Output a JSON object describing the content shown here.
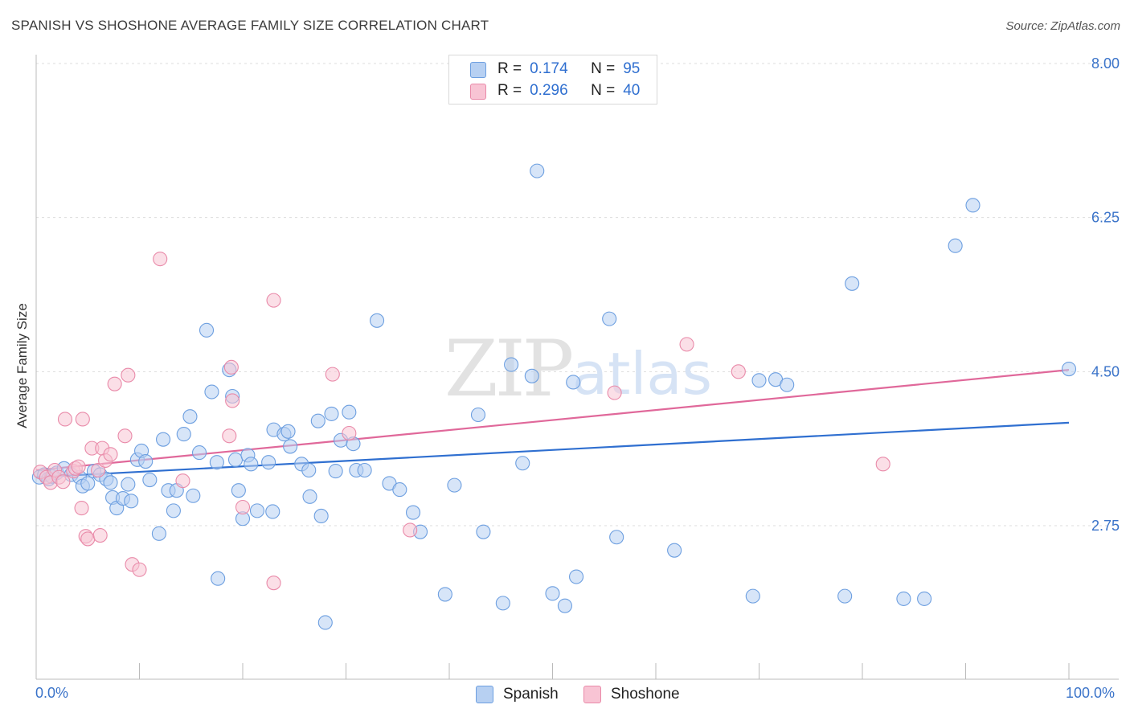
{
  "title": "SPANISH VS SHOSHONE AVERAGE FAMILY SIZE CORRELATION CHART",
  "source": "Source: ZipAtlas.com",
  "watermark": {
    "zip": "ZIP",
    "atlas": "atlas"
  },
  "legend": {
    "r_label": "R =",
    "n_label": "N =",
    "rows": [
      {
        "name": "Spanish",
        "r": "0.174",
        "n": "95"
      },
      {
        "name": "Shoshone",
        "r": "0.296",
        "n": "40"
      }
    ]
  },
  "colors": {
    "spanish_fill": "#b7d0f2",
    "spanish_stroke": "#6d9fe0",
    "spanish_line": "#2f6fd0",
    "shoshone_fill": "#f8c4d4",
    "shoshone_stroke": "#e98aa9",
    "shoshone_line": "#e0689a",
    "accent": "#3a73c9"
  },
  "chart_data": {
    "type": "scatter",
    "title": "SPANISH VS SHOSHONE AVERAGE FAMILY SIZE CORRELATION CHART",
    "xlabel": "",
    "ylabel": "Average Family Size",
    "xlim": [
      0,
      100
    ],
    "ylim": [
      1.3,
      8.3
    ],
    "x_tick_labels": [
      "0.0%",
      "100.0%"
    ],
    "y_ticks": [
      2.75,
      4.5,
      6.25,
      8.0
    ],
    "y_tick_labels": [
      "2.75",
      "4.50",
      "6.25",
      "8.00"
    ],
    "grid": true,
    "series": [
      {
        "name": "Spanish",
        "trend": {
          "x": [
            0,
            100
          ],
          "y": [
            3.3,
            3.92
          ]
        },
        "points": [
          [
            0.3,
            3.3
          ],
          [
            0.8,
            3.33
          ],
          [
            1.2,
            3.28
          ],
          [
            1.5,
            3.31
          ],
          [
            2.0,
            3.35
          ],
          [
            2.7,
            3.4
          ],
          [
            3.4,
            3.33
          ],
          [
            4.2,
            3.3
          ],
          [
            4.5,
            3.2
          ],
          [
            5.0,
            3.23
          ],
          [
            5.6,
            3.37
          ],
          [
            6.2,
            3.33
          ],
          [
            6.8,
            3.28
          ],
          [
            7.2,
            3.24
          ],
          [
            7.4,
            3.07
          ],
          [
            7.8,
            2.95
          ],
          [
            8.4,
            3.06
          ],
          [
            8.9,
            3.22
          ],
          [
            9.2,
            3.03
          ],
          [
            9.8,
            3.5
          ],
          [
            10.2,
            3.6
          ],
          [
            10.6,
            3.48
          ],
          [
            11.0,
            3.27
          ],
          [
            11.9,
            2.66
          ],
          [
            12.3,
            3.73
          ],
          [
            12.8,
            3.15
          ],
          [
            13.3,
            2.92
          ],
          [
            13.6,
            3.15
          ],
          [
            14.3,
            3.79
          ],
          [
            14.9,
            3.99
          ],
          [
            15.2,
            3.09
          ],
          [
            15.8,
            3.58
          ],
          [
            16.5,
            4.97
          ],
          [
            17.0,
            4.27
          ],
          [
            17.5,
            3.47
          ],
          [
            17.6,
            2.15
          ],
          [
            18.7,
            4.52
          ],
          [
            19.0,
            4.22
          ],
          [
            19.3,
            3.5
          ],
          [
            19.6,
            3.15
          ],
          [
            20.0,
            2.83
          ],
          [
            20.5,
            3.55
          ],
          [
            20.8,
            3.45
          ],
          [
            21.4,
            2.92
          ],
          [
            22.5,
            3.47
          ],
          [
            22.9,
            2.91
          ],
          [
            23.0,
            3.84
          ],
          [
            24.0,
            3.79
          ],
          [
            24.4,
            3.82
          ],
          [
            24.6,
            3.65
          ],
          [
            25.7,
            3.45
          ],
          [
            26.4,
            3.38
          ],
          [
            26.5,
            3.08
          ],
          [
            27.3,
            3.94
          ],
          [
            27.6,
            2.86
          ],
          [
            28.0,
            1.65
          ],
          [
            28.6,
            4.02
          ],
          [
            29.0,
            3.37
          ],
          [
            29.5,
            3.72
          ],
          [
            30.3,
            4.04
          ],
          [
            30.7,
            3.68
          ],
          [
            31.0,
            3.38
          ],
          [
            31.8,
            3.38
          ],
          [
            33.0,
            5.08
          ],
          [
            34.2,
            3.23
          ],
          [
            36.5,
            2.9
          ],
          [
            37.2,
            2.68
          ],
          [
            39.6,
            1.97
          ],
          [
            40.5,
            3.21
          ],
          [
            42.8,
            4.01
          ],
          [
            43.3,
            2.68
          ],
          [
            45.2,
            1.87
          ],
          [
            46.0,
            4.58
          ],
          [
            48.0,
            4.45
          ],
          [
            48.5,
            6.78
          ],
          [
            50.0,
            1.98
          ],
          [
            51.2,
            1.84
          ],
          [
            52.0,
            4.38
          ],
          [
            52.3,
            2.17
          ],
          [
            55.5,
            5.1
          ],
          [
            56.2,
            2.62
          ],
          [
            61.8,
            2.47
          ],
          [
            69.4,
            1.95
          ],
          [
            70.0,
            4.4
          ],
          [
            71.6,
            4.41
          ],
          [
            72.7,
            4.35
          ],
          [
            78.3,
            1.95
          ],
          [
            79.0,
            5.5
          ],
          [
            84.0,
            1.92
          ],
          [
            86.0,
            1.92
          ],
          [
            89.0,
            5.93
          ],
          [
            90.7,
            6.39
          ],
          [
            100.0,
            4.53
          ],
          [
            47.1,
            3.46
          ],
          [
            35.2,
            3.16
          ]
        ]
      },
      {
        "name": "Shoshone",
        "trend": {
          "x": [
            0,
            100
          ],
          "y": [
            3.38,
            4.52
          ]
        },
        "points": [
          [
            0.4,
            3.36
          ],
          [
            1.0,
            3.3
          ],
          [
            1.4,
            3.24
          ],
          [
            1.8,
            3.38
          ],
          [
            2.2,
            3.3
          ],
          [
            2.6,
            3.25
          ],
          [
            2.8,
            3.96
          ],
          [
            3.6,
            3.37
          ],
          [
            3.8,
            3.4
          ],
          [
            4.1,
            3.42
          ],
          [
            4.4,
            2.95
          ],
          [
            4.5,
            3.96
          ],
          [
            4.8,
            2.63
          ],
          [
            5.0,
            2.6
          ],
          [
            5.4,
            3.63
          ],
          [
            6.0,
            3.38
          ],
          [
            6.2,
            2.64
          ],
          [
            6.4,
            3.63
          ],
          [
            6.7,
            3.49
          ],
          [
            7.2,
            3.56
          ],
          [
            7.6,
            4.36
          ],
          [
            8.6,
            3.77
          ],
          [
            8.9,
            4.46
          ],
          [
            9.3,
            2.31
          ],
          [
            10.0,
            2.25
          ],
          [
            12.0,
            5.78
          ],
          [
            14.2,
            3.26
          ],
          [
            18.7,
            3.77
          ],
          [
            18.9,
            4.55
          ],
          [
            19.0,
            4.17
          ],
          [
            20.0,
            2.96
          ],
          [
            23.0,
            5.31
          ],
          [
            23.0,
            2.1
          ],
          [
            28.7,
            4.47
          ],
          [
            30.3,
            3.8
          ],
          [
            36.2,
            2.7
          ],
          [
            56.0,
            4.26
          ],
          [
            63.0,
            4.81
          ],
          [
            68.0,
            4.5
          ],
          [
            82.0,
            3.45
          ]
        ]
      }
    ]
  }
}
